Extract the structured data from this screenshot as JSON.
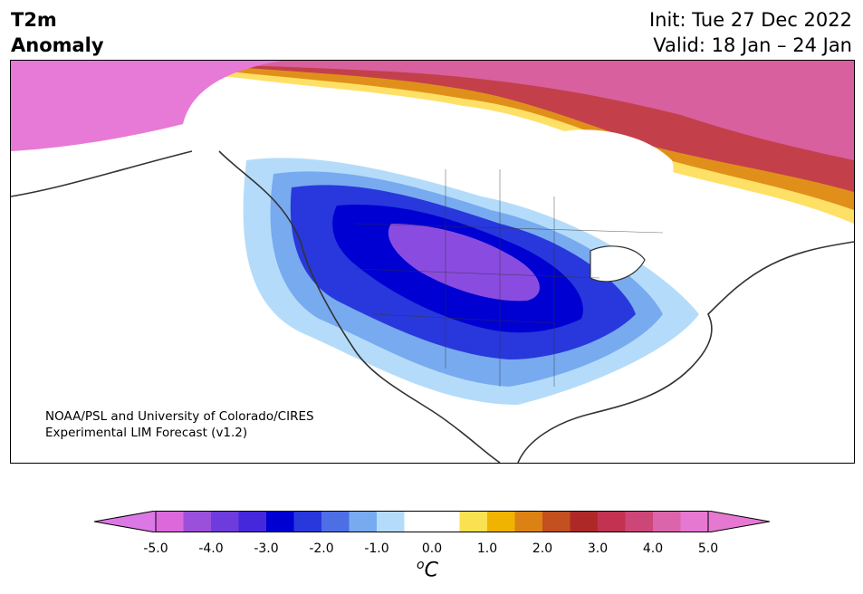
{
  "header": {
    "title_line1": "T2m",
    "title_line2": "Anomaly",
    "init": "Init: Tue 27 Dec 2022",
    "valid": "Valid: 18 Jan – 24 Jan"
  },
  "credit": {
    "line1": "NOAA/PSL and University of Colorado/CIRES",
    "line2": "Experimental LIM Forecast (v1.2)"
  },
  "colorbar": {
    "unit_sup": "o",
    "unit": "C",
    "ticks": [
      "-5.0",
      "-4.0",
      "-3.0",
      "-2.0",
      "-1.0",
      "0.0",
      "1.0",
      "2.0",
      "3.0",
      "4.0",
      "5.0"
    ],
    "colors": [
      "#dc68dc",
      "#9b50dc",
      "#6e3cdc",
      "#4628dc",
      "#0000d2",
      "#2838dc",
      "#4e6ee6",
      "#78aaf0",
      "#b4dcfa",
      "#ffffff",
      "#ffffff",
      "#fae150",
      "#f0b400",
      "#dc8214",
      "#c3501e",
      "#af2828",
      "#c33250",
      "#cd4678",
      "#dc64aa",
      "#e678d2"
    ],
    "under_color": "#dc78e6",
    "over_color": "#e678d2"
  }
}
